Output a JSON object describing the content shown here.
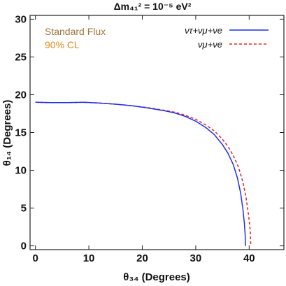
{
  "chart_data": {
    "type": "line",
    "title": "Δm₄₁² = 10⁻⁵ eV²",
    "xlabel": "θ₃₄ (Degrees)",
    "ylabel": "θ₁₄ (Degrees)",
    "xlim": [
      -1,
      46.5
    ],
    "ylim": [
      -0.5,
      30.5
    ],
    "xticks": [
      0,
      10,
      20,
      30,
      40
    ],
    "yticks": [
      0,
      5,
      10,
      15,
      20,
      25,
      30
    ],
    "grid": false,
    "legend_position": "top-right",
    "annotations": [
      {
        "text": "Standard Flux",
        "color": "#a0763a"
      },
      {
        "text": "90% CL",
        "color": "#e38b1a"
      }
    ],
    "series": [
      {
        "name": "ντ+νμ+νe",
        "color": "#1f2ff0",
        "style": "solid",
        "points": [
          [
            0,
            19.0
          ],
          [
            3,
            18.95
          ],
          [
            6,
            18.95
          ],
          [
            9,
            19.0
          ],
          [
            12,
            18.9
          ],
          [
            15,
            18.75
          ],
          [
            18,
            18.55
          ],
          [
            21,
            18.25
          ],
          [
            24,
            17.9
          ],
          [
            26,
            17.6
          ],
          [
            28,
            17.15
          ],
          [
            30,
            16.5
          ],
          [
            32,
            15.6
          ],
          [
            33.5,
            14.7
          ],
          [
            35,
            13.4
          ],
          [
            36,
            12.3
          ],
          [
            37,
            10.8
          ],
          [
            37.8,
            9.0
          ],
          [
            38.4,
            7.0
          ],
          [
            38.8,
            5.0
          ],
          [
            39.1,
            3.0
          ],
          [
            39.25,
            1.5
          ],
          [
            39.3,
            0.0
          ]
        ]
      },
      {
        "name": "νμ+νe",
        "color": "#e0281e",
        "style": "dashed",
        "points": [
          [
            0,
            19.0
          ],
          [
            3,
            18.95
          ],
          [
            6,
            18.95
          ],
          [
            9,
            19.0
          ],
          [
            12,
            18.9
          ],
          [
            15,
            18.75
          ],
          [
            18,
            18.55
          ],
          [
            21,
            18.3
          ],
          [
            24,
            17.95
          ],
          [
            26,
            17.7
          ],
          [
            28,
            17.3
          ],
          [
            30,
            16.75
          ],
          [
            32,
            15.95
          ],
          [
            33.5,
            15.2
          ],
          [
            35,
            14.1
          ],
          [
            36,
            13.2
          ],
          [
            37,
            12.0
          ],
          [
            38,
            10.4
          ],
          [
            38.8,
            8.5
          ],
          [
            39.4,
            6.5
          ],
          [
            39.9,
            4.0
          ],
          [
            40.2,
            2.0
          ],
          [
            40.3,
            0.0
          ]
        ]
      }
    ]
  }
}
